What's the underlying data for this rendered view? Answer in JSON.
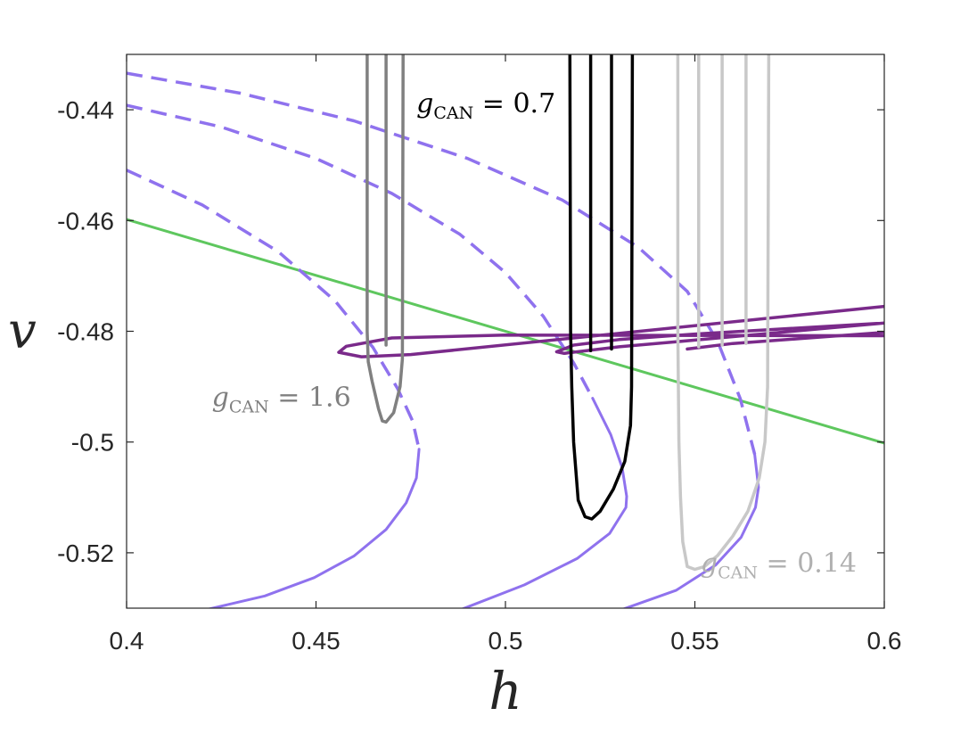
{
  "chart_data": {
    "type": "line",
    "title": "",
    "xlabel": "h",
    "ylabel": "v",
    "xlim": [
      0.4,
      0.6
    ],
    "ylim": [
      -0.53,
      -0.43
    ],
    "grid": false,
    "xticks": [
      0.4,
      0.45,
      0.5,
      0.55,
      0.6
    ],
    "xtick_labels": [
      "0.4",
      "0.45",
      "0.5",
      "0.55",
      "0.6"
    ],
    "yticks": [
      -0.44,
      -0.46,
      -0.48,
      -0.5,
      -0.52
    ],
    "ytick_labels": [
      "-0.44",
      "-0.46",
      "-0.48",
      "-0.5",
      "-0.52"
    ],
    "colors": {
      "dark_gray": "#808080",
      "black": "#000000",
      "light_gray": "#c8c8c8",
      "purple": "#7a2a8a",
      "lavender": "#8f72ee",
      "green": "#5ec75e",
      "axis": "#262626"
    },
    "annotations": [
      {
        "var": "g",
        "sub": "CAN",
        "eq": " = 0.7",
        "x": 0.4765,
        "y": -0.4405,
        "color": "#000000"
      },
      {
        "var": "g",
        "sub": "CAN",
        "eq": " = 1.6",
        "x": 0.4225,
        "y": -0.4935,
        "color": "#808080"
      },
      {
        "var": "g",
        "sub": "CAN",
        "eq": " = 0.14",
        "x": 0.5515,
        "y": -0.5235,
        "color": "#b0b0b0"
      }
    ],
    "series": [
      {
        "style": "solid",
        "color": "#5ec75e",
        "width": 3,
        "x": [
          0.4,
          0.6
        ],
        "y": [
          -0.4598,
          -0.5002
        ]
      },
      {
        "style": "dashed",
        "color": "#8f72ee",
        "width": 3.5,
        "x": [
          0.4,
          0.42,
          0.44,
          0.455,
          0.465,
          0.4715,
          0.4755,
          0.4772
        ],
        "y": [
          -0.4509,
          -0.4572,
          -0.4656,
          -0.4745,
          -0.4829,
          -0.4903,
          -0.4962,
          -0.5013
        ]
      },
      {
        "style": "solid",
        "color": "#8f72ee",
        "width": 3,
        "x": [
          0.4772,
          0.4765,
          0.4738,
          0.4685,
          0.46,
          0.4495,
          0.4365,
          0.4215
        ],
        "y": [
          -0.5013,
          -0.5065,
          -0.511,
          -0.5158,
          -0.5206,
          -0.5245,
          -0.5278,
          -0.5302
        ]
      },
      {
        "style": "dashed",
        "color": "#8f72ee",
        "width": 3.5,
        "x": [
          0.4,
          0.425,
          0.45,
          0.47,
          0.488,
          0.5,
          0.51,
          0.518,
          0.523
        ],
        "y": [
          -0.4392,
          -0.4431,
          -0.4488,
          -0.4551,
          -0.4625,
          -0.4694,
          -0.4773,
          -0.4857,
          -0.4921
        ]
      },
      {
        "style": "solid",
        "color": "#8f72ee",
        "width": 3,
        "x": [
          0.523,
          0.5278,
          0.5308,
          0.532,
          0.5318,
          0.5275,
          0.519,
          0.505,
          0.4885
        ],
        "y": [
          -0.4921,
          -0.4987,
          -0.5046,
          -0.5098,
          -0.5118,
          -0.5165,
          -0.521,
          -0.5258,
          -0.5302
        ]
      },
      {
        "style": "dashed",
        "color": "#8f72ee",
        "width": 3.5,
        "x": [
          0.4,
          0.43,
          0.46,
          0.49,
          0.515,
          0.535,
          0.548,
          0.556,
          0.562,
          0.5658
        ],
        "y": [
          -0.4334,
          -0.437,
          -0.442,
          -0.4488,
          -0.4563,
          -0.4648,
          -0.4728,
          -0.4818,
          -0.4922,
          -0.5022
        ]
      },
      {
        "style": "solid",
        "color": "#8f72ee",
        "width": 3,
        "x": [
          0.5658,
          0.5668,
          0.566,
          0.5622,
          0.5555,
          0.545,
          0.531
        ],
        "y": [
          -0.5022,
          -0.5082,
          -0.5118,
          -0.5172,
          -0.5222,
          -0.5268,
          -0.5302
        ]
      },
      {
        "style": "solid",
        "color": "#7a2a8a",
        "width": 3.5,
        "x": [
          0.6,
          0.5,
          0.47,
          0.458,
          0.456,
          0.462,
          0.475,
          0.6
        ],
        "y": [
          -0.4808,
          -0.4807,
          -0.4812,
          -0.4827,
          -0.4838,
          -0.4846,
          -0.4842,
          -0.4755
        ]
      },
      {
        "style": "solid",
        "color": "#7a2a8a",
        "width": 3.5,
        "x": [
          0.6,
          0.55,
          0.53,
          0.518,
          0.5135,
          0.5155,
          0.53,
          0.55,
          0.6
        ],
        "y": [
          -0.4785,
          -0.4805,
          -0.4815,
          -0.4825,
          -0.4837,
          -0.484,
          -0.4828,
          -0.4816,
          -0.4785
        ]
      },
      {
        "style": "solid",
        "color": "#7a2a8a",
        "width": 3.5,
        "x": [
          0.548,
          0.56,
          0.58,
          0.6
        ],
        "y": [
          -0.4832,
          -0.4822,
          -0.4812,
          -0.4802
        ]
      },
      {
        "style": "solid",
        "color": "#808080",
        "width": 3.5,
        "x": [
          0.4635,
          0.4635,
          0.4638,
          0.4648,
          0.4665,
          0.4675,
          0.4685,
          0.4705,
          0.4722,
          0.4728,
          0.473
        ],
        "y": [
          -0.43,
          -0.48,
          -0.4855,
          -0.489,
          -0.494,
          -0.4962,
          -0.4964,
          -0.4947,
          -0.49,
          -0.485,
          -0.43
        ]
      },
      {
        "style": "solid",
        "color": "#808080",
        "width": 3.5,
        "x": [
          0.4685,
          0.4685
        ],
        "y": [
          -0.43,
          -0.4825
        ]
      },
      {
        "style": "solid",
        "color": "#000000",
        "width": 3.5,
        "x": [
          0.517,
          0.5172,
          0.5175,
          0.518,
          0.5192,
          0.521,
          0.5228,
          0.525,
          0.5285,
          0.5315,
          0.533,
          0.5333,
          0.5335
        ],
        "y": [
          -0.43,
          -0.48,
          -0.49,
          -0.5,
          -0.5105,
          -0.5135,
          -0.5139,
          -0.5125,
          -0.5085,
          -0.5035,
          -0.497,
          -0.49,
          -0.43
        ]
      },
      {
        "style": "solid",
        "color": "#000000",
        "width": 3.5,
        "x": [
          0.5225,
          0.5225
        ],
        "y": [
          -0.43,
          -0.4835
        ]
      },
      {
        "style": "solid",
        "color": "#000000",
        "width": 3.5,
        "x": [
          0.528,
          0.528
        ],
        "y": [
          -0.43,
          -0.4832
        ]
      },
      {
        "style": "solid",
        "color": "#c8c8c8",
        "width": 3.5,
        "x": [
          0.5455,
          0.5455,
          0.5458,
          0.5462,
          0.5468,
          0.548,
          0.55,
          0.5525,
          0.556,
          0.56,
          0.564,
          0.567,
          0.5685,
          0.5692,
          0.5695
        ],
        "y": [
          -0.43,
          -0.48,
          -0.5,
          -0.51,
          -0.518,
          -0.5225,
          -0.523,
          -0.5225,
          -0.5205,
          -0.517,
          -0.5125,
          -0.5065,
          -0.5,
          -0.49,
          -0.43
        ]
      },
      {
        "style": "solid",
        "color": "#c8c8c8",
        "width": 3.5,
        "x": [
          0.551,
          0.551
        ],
        "y": [
          -0.43,
          -0.4828
        ]
      },
      {
        "style": "solid",
        "color": "#c8c8c8",
        "width": 3.5,
        "x": [
          0.5572,
          0.5572
        ],
        "y": [
          -0.43,
          -0.4825
        ]
      },
      {
        "style": "solid",
        "color": "#c8c8c8",
        "width": 3.5,
        "x": [
          0.5635,
          0.5635
        ],
        "y": [
          -0.43,
          -0.4822
        ]
      }
    ]
  }
}
